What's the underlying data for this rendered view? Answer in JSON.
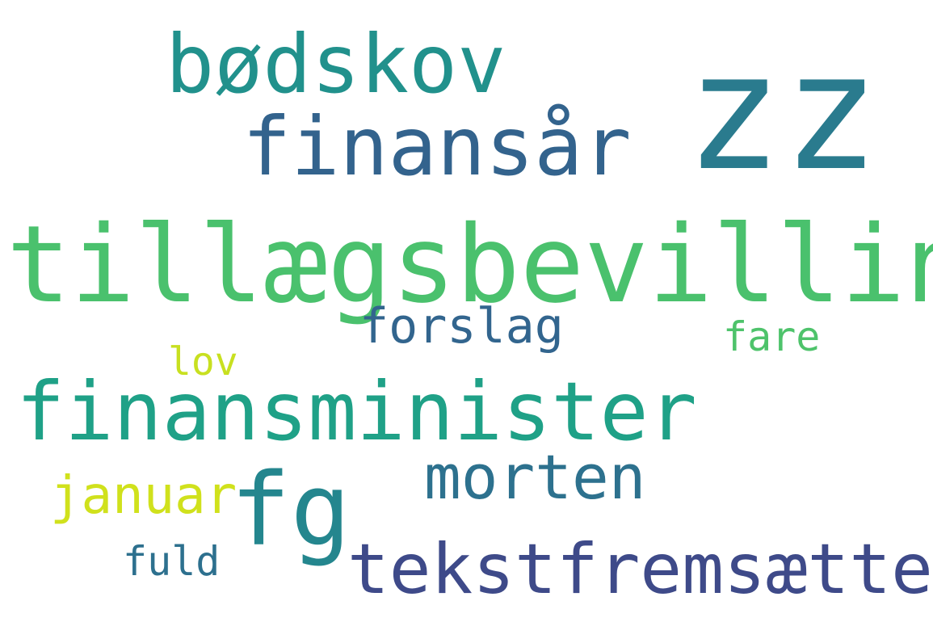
{
  "words": [
    {
      "id": "zz",
      "text": "zz",
      "color": "#2a7b8e"
    },
    {
      "id": "bodskov",
      "text": "bødskov",
      "color": "#21918c"
    },
    {
      "id": "finansar",
      "text": "finansår",
      "color": "#33638d"
    },
    {
      "id": "tillaegsbevilling",
      "text": "tillægsbevilling",
      "color": "#4ac16d"
    },
    {
      "id": "forslag",
      "text": "forslag",
      "color": "#32658e"
    },
    {
      "id": "fare",
      "text": "fare",
      "color": "#4ec36b"
    },
    {
      "id": "lov",
      "text": "lov",
      "color": "#c8e020"
    },
    {
      "id": "finansminister",
      "text": "finansminister",
      "color": "#1fa187"
    },
    {
      "id": "morten",
      "text": "morten",
      "color": "#2d718e"
    },
    {
      "id": "januar",
      "text": "januar",
      "color": "#d0e11c"
    },
    {
      "id": "fg",
      "text": "fg",
      "color": "#24868e"
    },
    {
      "id": "fuld",
      "text": "fuld",
      "color": "#2d708e"
    },
    {
      "id": "tekstfremsaette",
      "text": "tekstfremsætte",
      "color": "#3e4a89"
    }
  ]
}
